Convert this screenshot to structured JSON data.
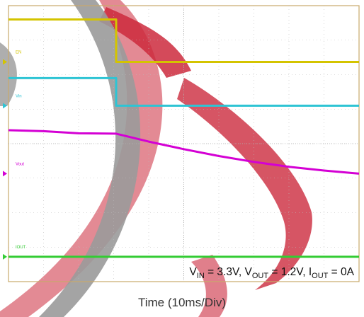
{
  "chart_data": {
    "type": "line",
    "title": "",
    "xlabel": "Time (10ms/Div)",
    "ylabel": "",
    "annotation": {
      "v_in": "3.3V",
      "v_out": "1.2V",
      "i_out": "0A"
    },
    "annotation_text": {
      "v": "V",
      "in": "IN",
      "eq_in": " = 3.3V, V",
      "out": "OUT",
      "eq_out": " = 1.2V, I",
      "eq_i": " = 0A"
    },
    "x_divisions": 10,
    "y_divisions": 8,
    "xlim": [
      0,
      10
    ],
    "ylim": [
      0,
      8
    ],
    "grid": true,
    "series": [
      {
        "color": "#d4c400",
        "channel_label": "EN",
        "x": [
          0,
          3.07,
          3.07,
          10
        ],
        "y": [
          7.6,
          7.6,
          6.37,
          6.37
        ]
      },
      {
        "color": "#2ec4d4",
        "channel_label": "Vin",
        "x": [
          0,
          3.07,
          3.07,
          10
        ],
        "y": [
          5.9,
          5.9,
          5.1,
          5.1
        ]
      },
      {
        "color": "#d400d4",
        "channel_label": "Vout",
        "x": [
          0,
          1,
          2,
          3.07,
          4,
          5,
          6,
          7,
          8,
          9,
          10
        ],
        "y": [
          4.39,
          4.36,
          4.3,
          4.29,
          4.06,
          3.84,
          3.64,
          3.47,
          3.33,
          3.22,
          3.13
        ]
      },
      {
        "color": "#33cc33",
        "channel_label": "IOUT",
        "x": [
          0,
          10
        ],
        "y": [
          0.72,
          0.72
        ]
      }
    ],
    "background_watermark": {
      "colors": [
        "#cc2a3d",
        "#9a9a9a"
      ]
    }
  }
}
